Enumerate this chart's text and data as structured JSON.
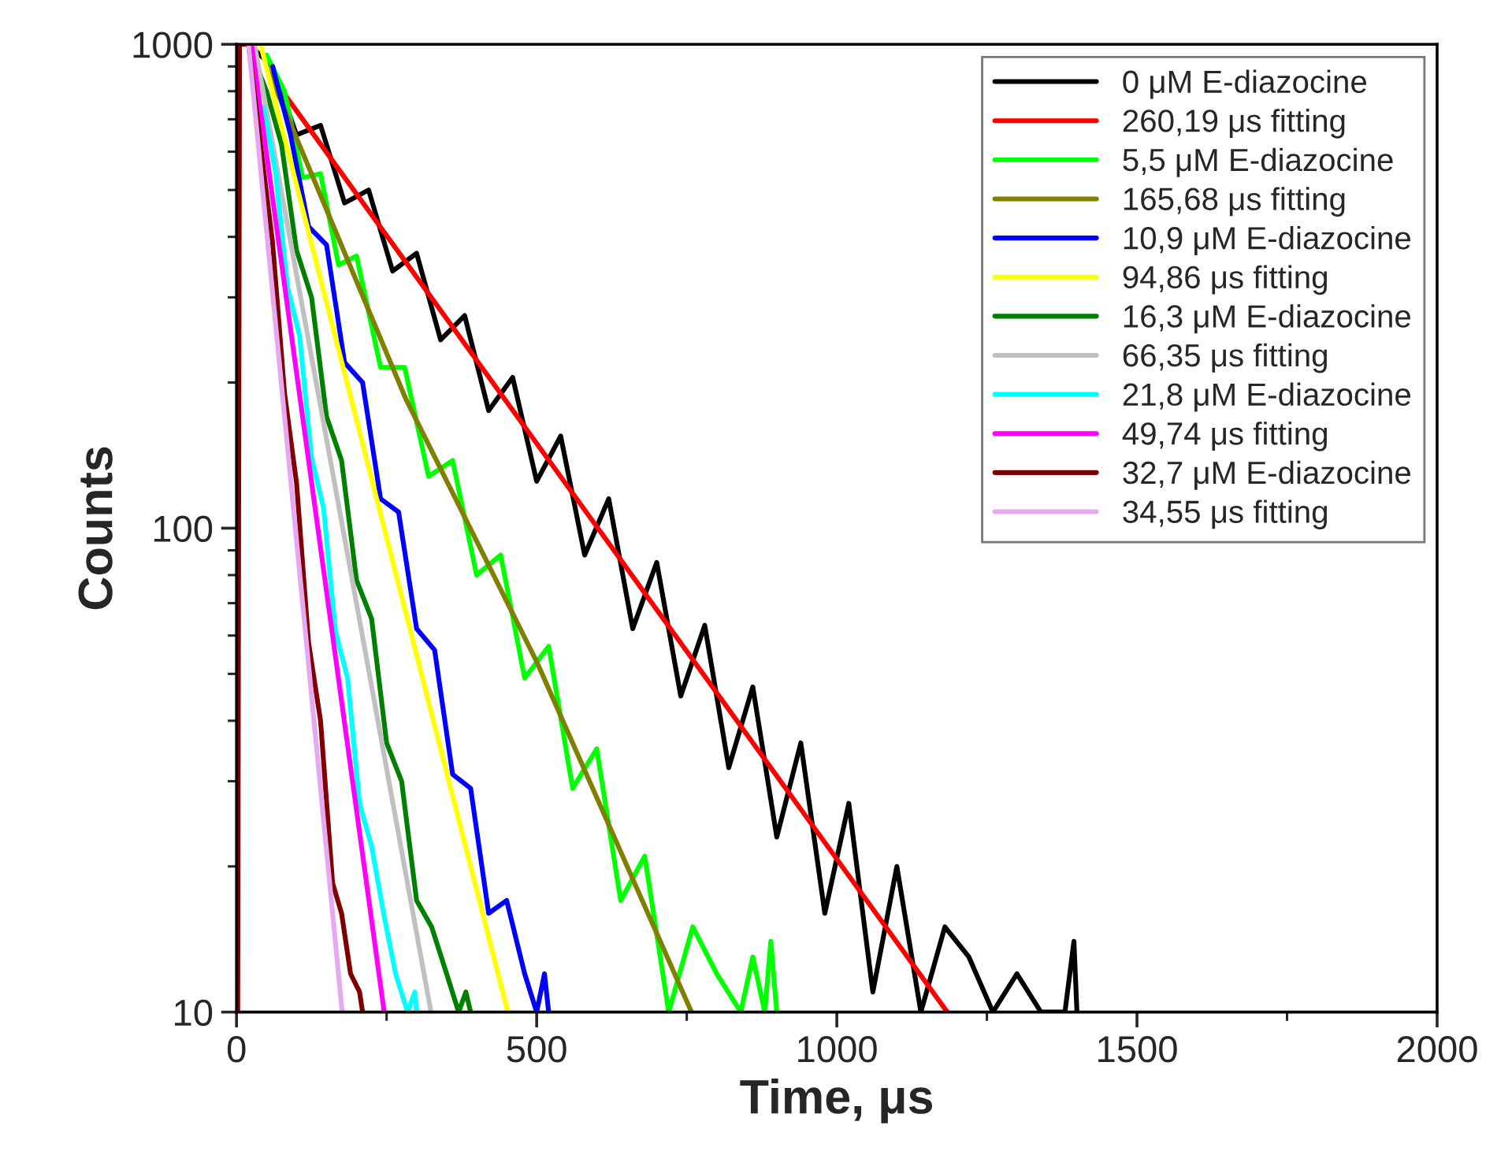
{
  "chart_data": {
    "type": "line",
    "xlabel": "Time, μs",
    "ylabel": "Counts",
    "log": "y",
    "xlim": [
      0,
      2000
    ],
    "xticks": [
      0,
      500,
      1000,
      1500,
      2000
    ],
    "ylim": [
      10,
      1000
    ],
    "yticks": [
      10,
      100,
      1000
    ],
    "grid": false,
    "legend": "top right",
    "marker": "none",
    "line_style": "solid",
    "series": [
      {
        "name": "0 μM E-diazocine",
        "color": "#000000",
        "x": [
          20,
          60,
          100,
          140,
          180,
          220,
          260,
          300,
          340,
          380,
          420,
          460,
          500,
          540,
          580,
          620,
          660,
          700,
          740,
          780,
          820,
          860,
          900,
          940,
          980,
          1020,
          1060,
          1100,
          1140,
          1180,
          1220,
          1260,
          1300,
          1340,
          1380,
          1395,
          1400
        ],
        "values": [
          1000,
          900,
          650,
          680,
          470,
          500,
          340,
          370,
          245,
          275,
          175,
          205,
          125,
          155,
          88,
          115,
          62,
          85,
          45,
          63,
          32,
          47,
          23,
          36,
          16,
          27,
          11,
          20,
          10,
          15,
          13,
          10,
          12,
          10,
          10,
          14,
          10
        ]
      },
      {
        "name": "260,19 μs fitting",
        "color": "#ff0000",
        "x": [
          71,
          1184
        ],
        "values": [
          817,
          10
        ]
      },
      {
        "name": "5,5 μM E-diazocine",
        "color": "#00ff00",
        "x": [
          50,
          80,
          110,
          140,
          170,
          200,
          240,
          280,
          320,
          360,
          400,
          440,
          480,
          520,
          560,
          600,
          640,
          680,
          720,
          760,
          800,
          840,
          860,
          880,
          890,
          900
        ],
        "values": [
          950,
          800,
          530,
          540,
          350,
          365,
          215,
          215,
          128,
          138,
          80,
          88,
          49,
          57,
          29,
          35,
          17,
          21,
          10,
          15,
          12,
          10,
          13,
          10,
          14,
          10
        ]
      },
      {
        "name": "165,68 μs fitting",
        "color": "#808000",
        "x": [
          50,
          282,
          500,
          758
        ],
        "values": [
          900,
          185,
          53,
          10
        ]
      },
      {
        "name": "10,9 μM E-diazocine",
        "color": "#0000ff",
        "x": [
          60,
          90,
          120,
          150,
          180,
          210,
          240,
          270,
          300,
          330,
          360,
          390,
          420,
          450,
          480,
          500,
          513,
          520
        ],
        "values": [
          900,
          650,
          420,
          385,
          220,
          200,
          115,
          108,
          62,
          56,
          31,
          29,
          16,
          17,
          12,
          10,
          12,
          10
        ]
      },
      {
        "name": "94,86 μs fitting",
        "color": "#ffff00",
        "x": [
          40,
          452
        ],
        "values": [
          1000,
          10
        ]
      },
      {
        "name": "16,3 μM E-diazocine",
        "color": "#008000",
        "x": [
          20,
          50,
          75,
          100,
          125,
          150,
          175,
          200,
          225,
          250,
          275,
          300,
          325,
          350,
          370,
          382,
          390
        ],
        "values": [
          1000,
          800,
          620,
          375,
          300,
          170,
          138,
          78,
          65,
          36,
          30,
          17,
          15,
          12,
          10,
          11,
          10
        ]
      },
      {
        "name": "66,35 μs fitting",
        "color": "#c0c0c0",
        "x": [
          30,
          324
        ],
        "values": [
          1000,
          10
        ]
      },
      {
        "name": "21,8 μM E-diazocine",
        "color": "#00ffff",
        "x": [
          45,
          65,
          85,
          105,
          125,
          145,
          165,
          185,
          205,
          225,
          245,
          265,
          285,
          297,
          300
        ],
        "values": [
          740,
          545,
          315,
          250,
          140,
          110,
          61,
          49,
          27,
          22,
          16,
          12,
          10,
          11,
          10
        ]
      },
      {
        "name": "49,74 μs fitting",
        "color": "#ff00ff",
        "x": [
          25,
          246
        ],
        "values": [
          1000,
          10
        ]
      },
      {
        "name": "32,7 μM E-diazocine",
        "color": "#800000",
        "x": [
          2,
          5,
          20,
          40,
          60,
          80,
          100,
          120,
          140,
          160,
          175,
          190,
          205,
          210
        ],
        "values": [
          10,
          1000,
          1000,
          620,
          390,
          190,
          124,
          58,
          40,
          18.5,
          16,
          12,
          11,
          10
        ]
      },
      {
        "name": "34,55 μs fitting",
        "color": "#e6a8f0",
        "x": [
          20,
          176
        ],
        "values": [
          1000,
          10
        ]
      }
    ]
  }
}
